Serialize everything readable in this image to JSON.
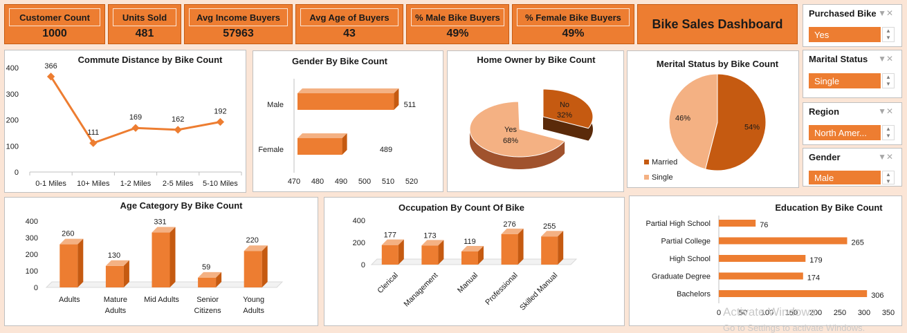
{
  "kpis": [
    {
      "label": "Customer Count",
      "value": "1000"
    },
    {
      "label": "Units Sold",
      "value": "481"
    },
    {
      "label": "Avg Income Buyers",
      "value": "57963"
    },
    {
      "label": "Avg Age of Buyers",
      "value": "43"
    },
    {
      "label": "% Male Bike Buyers",
      "value": "49%"
    },
    {
      "label": "% Female Bike Buyers",
      "value": "49%"
    }
  ],
  "dashboard_title": "Bike Sales  Dashboard",
  "slicers": [
    {
      "label": "Purchased Bike",
      "selected": "Yes"
    },
    {
      "label": "Marital Status",
      "selected": "Single"
    },
    {
      "label": "Region",
      "selected": "North Amer..."
    },
    {
      "label": "Gender",
      "selected": "Male"
    }
  ],
  "watermark": {
    "line1": "Activate Windows",
    "line2": "Go to Settings to activate Windows."
  },
  "colors": {
    "accent": "#ed7d31",
    "accent_dark": "#c55a11",
    "light": "#f4b183",
    "background": "#fbe5d6"
  },
  "chart_data": [
    {
      "id": "commute",
      "type": "line",
      "title": "Commute Distance by  Bike Count",
      "categories": [
        "0-1 Miles",
        "10+ Miles",
        "1-2 Miles",
        "2-5 Miles",
        "5-10 Miles"
      ],
      "values": [
        366,
        111,
        169,
        162,
        192
      ],
      "ylim": [
        0,
        400
      ],
      "yticks": [
        0,
        100,
        200,
        300,
        400
      ]
    },
    {
      "id": "gender",
      "type": "bar",
      "orientation": "horizontal",
      "title": "Gender By Bike Count",
      "categories": [
        "Male",
        "Female"
      ],
      "values": [
        511,
        489
      ],
      "xlim": [
        470,
        520
      ],
      "xticks": [
        470,
        480,
        490,
        500,
        510,
        520
      ]
    },
    {
      "id": "homeowner",
      "type": "pie",
      "title": "Home Owner by Bike Count",
      "slices": [
        {
          "label": "No",
          "value": 32,
          "text": "32%"
        },
        {
          "label": "Yes",
          "value": 68,
          "text": "68%"
        }
      ]
    },
    {
      "id": "marital",
      "type": "pie",
      "title": "Merital Status by Bike Count",
      "slices": [
        {
          "label": "Married",
          "value": 54,
          "text": "54%"
        },
        {
          "label": "Single",
          "value": 46,
          "text": "46%"
        }
      ],
      "legend": [
        "Married",
        "Single"
      ],
      "legend_position": "bottom-left"
    },
    {
      "id": "age",
      "type": "bar",
      "title": "Age Category By Bike Count",
      "categories": [
        "Adults",
        "Mature Adults",
        "Mid Adults",
        "Senior Citizens",
        "Young Adults"
      ],
      "values": [
        260,
        130,
        331,
        59,
        220
      ],
      "ylim": [
        0,
        400
      ],
      "yticks": [
        0,
        100,
        200,
        300,
        400
      ]
    },
    {
      "id": "occupation",
      "type": "bar",
      "title": "Occupation By Count Of Bike",
      "categories": [
        "Clerical",
        "Management",
        "Manual",
        "Professional",
        "Skilled Manual"
      ],
      "values": [
        177,
        173,
        119,
        276,
        255
      ],
      "ylim": [
        0,
        400
      ],
      "yticks": [
        0,
        200,
        400
      ]
    },
    {
      "id": "education",
      "type": "bar",
      "orientation": "horizontal",
      "title": "Education By Bike Count",
      "categories": [
        "Partial High School",
        "Partial College",
        "High School",
        "Graduate Degree",
        "Bachelors"
      ],
      "values": [
        76,
        265,
        179,
        174,
        306
      ],
      "xlim": [
        0,
        350
      ],
      "xticks": [
        0,
        50,
        100,
        150,
        200,
        250,
        300,
        350
      ]
    }
  ]
}
